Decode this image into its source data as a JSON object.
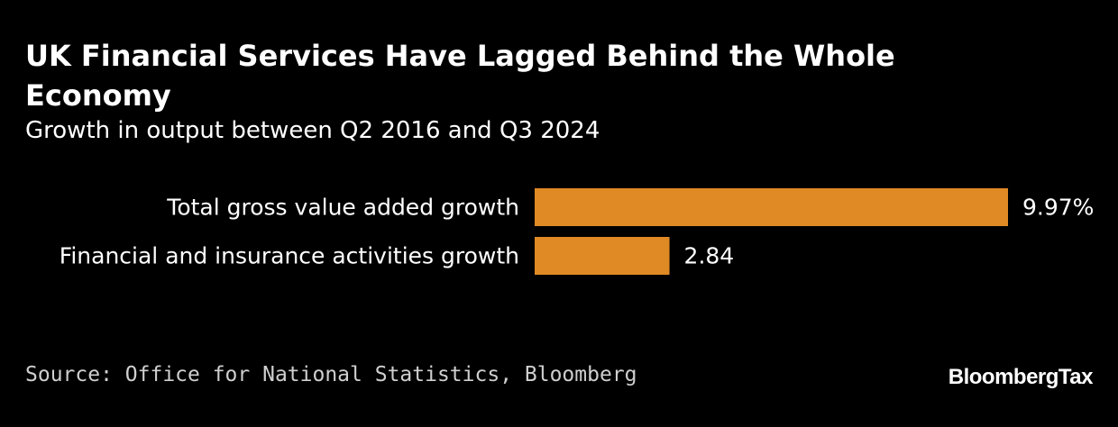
{
  "chart_data": {
    "type": "bar",
    "orientation": "horizontal",
    "title": "UK Financial Services Have Lagged Behind the Whole Economy",
    "subtitle": "Growth in output between Q2 2016 and Q3 2024",
    "categories": [
      "Total gross value added growth",
      "Financial and insurance activities growth"
    ],
    "values": [
      9.97,
      2.84
    ],
    "value_labels": [
      "9.97%",
      "2.84"
    ],
    "xlim": [
      0,
      9.97
    ],
    "grid": false,
    "legend": "none",
    "bar_color": "#e08a25"
  },
  "footer": {
    "source": "Source: Office for National Statistics, Bloomberg",
    "logo": "BloombergTax"
  }
}
